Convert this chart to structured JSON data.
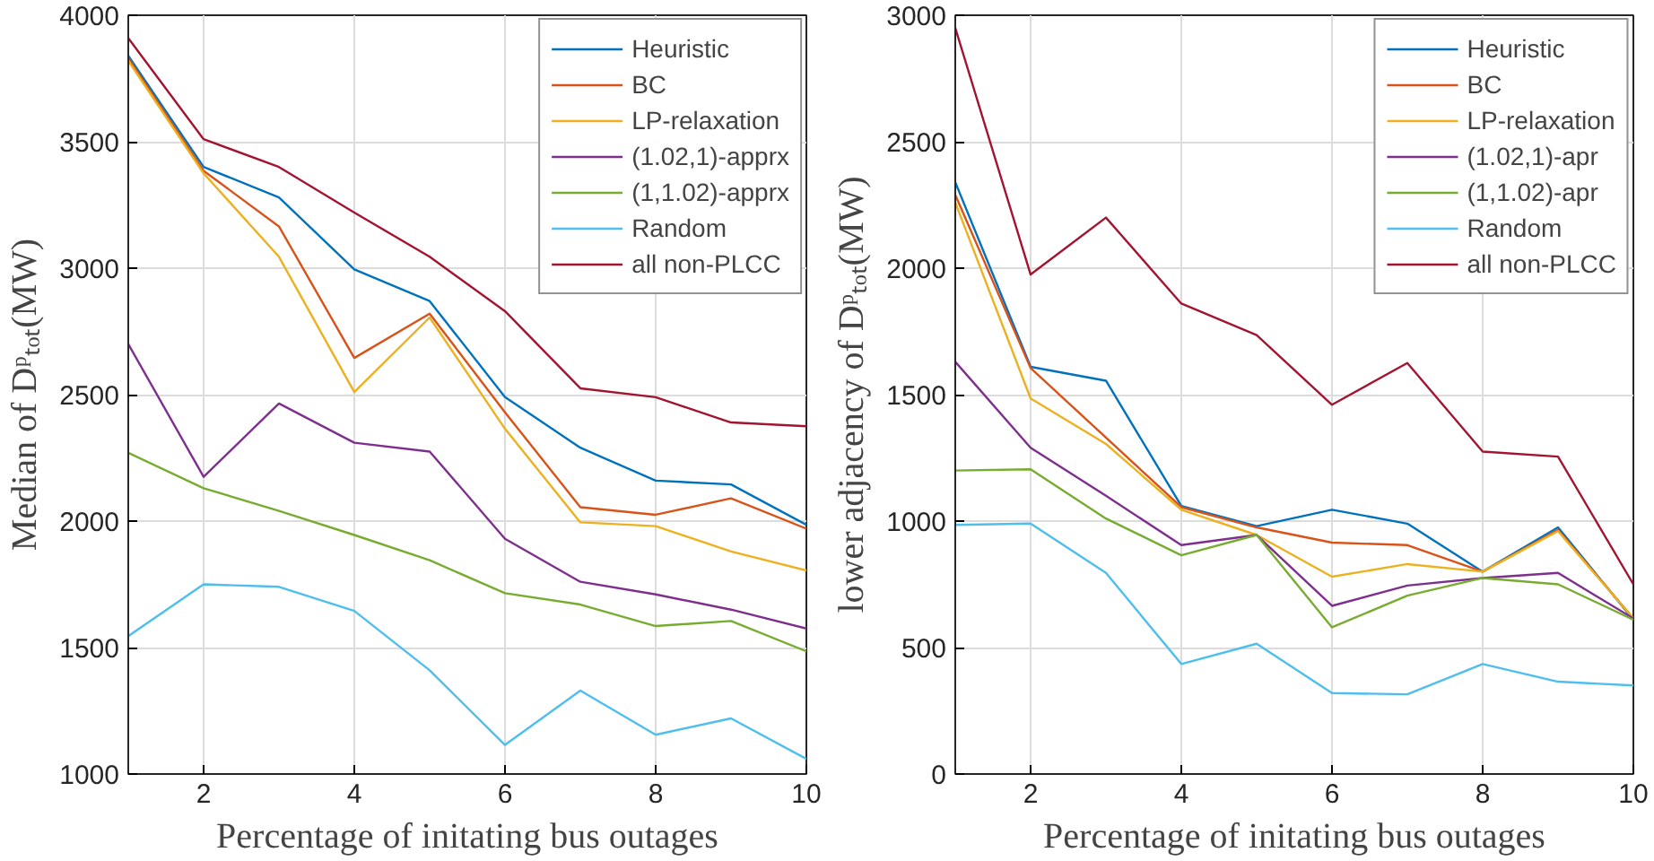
{
  "chart_data": [
    {
      "type": "line",
      "xlabel": "Percentage of initating bus outages",
      "ylabel": "Median of Dᵖₜₒₜ(MW)",
      "x": [
        1,
        2,
        3,
        4,
        5,
        6,
        7,
        8,
        9,
        10
      ],
      "xlim": [
        1,
        10
      ],
      "xticks": [
        2,
        4,
        6,
        8,
        10
      ],
      "ylim": [
        1000,
        4000
      ],
      "yticks": [
        1000,
        1500,
        2000,
        2500,
        3000,
        3500,
        4000
      ],
      "grid": true,
      "legend": "top right",
      "series": [
        {
          "name": "Heuristic",
          "color": "#0072bd",
          "values": [
            3840,
            3400,
            3280,
            2995,
            2870,
            2490,
            2290,
            2160,
            2145,
            1985
          ]
        },
        {
          "name": "BC",
          "color": "#d95319",
          "values": [
            3830,
            3385,
            3165,
            2645,
            2820,
            2430,
            2055,
            2025,
            2090,
            1970
          ]
        },
        {
          "name": "LP-relaxation",
          "color": "#edb120",
          "values": [
            3820,
            3375,
            3045,
            2510,
            2805,
            2365,
            1995,
            1980,
            1880,
            1805
          ]
        },
        {
          "name": "(1.02,1)-apprx",
          "color": "#7e2f8e",
          "values": [
            2700,
            2175,
            2465,
            2310,
            2275,
            1930,
            1760,
            1710,
            1650,
            1575
          ]
        },
        {
          "name": "(1,1.02)-apprx",
          "color": "#77ac30",
          "values": [
            2270,
            2130,
            2040,
            1945,
            1845,
            1715,
            1670,
            1585,
            1605,
            1485
          ]
        },
        {
          "name": "Random",
          "color": "#4dbeee",
          "values": [
            1545,
            1750,
            1740,
            1645,
            1410,
            1115,
            1330,
            1155,
            1220,
            1060
          ]
        },
        {
          "name": "all non-PLCC",
          "color": "#a2142f",
          "values": [
            3910,
            3510,
            3400,
            3220,
            3045,
            2830,
            2525,
            2490,
            2390,
            2375
          ]
        }
      ]
    },
    {
      "type": "line",
      "xlabel": "Percentage of initating bus outages",
      "ylabel": "lower adjacency of Dᵖₜₒₜ(MW)",
      "x": [
        1,
        2,
        3,
        4,
        5,
        6,
        7,
        8,
        9,
        10
      ],
      "xlim": [
        1,
        10
      ],
      "xticks": [
        2,
        4,
        6,
        8,
        10
      ],
      "ylim": [
        0,
        3000
      ],
      "yticks": [
        0,
        500,
        1000,
        1500,
        2000,
        2500,
        3000
      ],
      "grid": true,
      "legend": "top right",
      "series": [
        {
          "name": "Heuristic",
          "color": "#0072bd",
          "values": [
            2340,
            1610,
            1555,
            1060,
            980,
            1045,
            990,
            800,
            975,
            610
          ]
        },
        {
          "name": "BC",
          "color": "#d95319",
          "values": [
            2290,
            1605,
            1330,
            1055,
            975,
            915,
            905,
            800,
            965,
            615
          ]
        },
        {
          "name": "LP-relaxation",
          "color": "#edb120",
          "values": [
            2260,
            1485,
            1305,
            1045,
            945,
            780,
            830,
            800,
            960,
            615
          ]
        },
        {
          "name": "(1.02,1)-apr",
          "color": "#7e2f8e",
          "values": [
            1630,
            1290,
            1100,
            905,
            945,
            665,
            745,
            775,
            795,
            615
          ]
        },
        {
          "name": "(1,1.02)-apr",
          "color": "#77ac30",
          "values": [
            1200,
            1205,
            1010,
            865,
            945,
            580,
            705,
            775,
            750,
            610
          ]
        },
        {
          "name": "Random",
          "color": "#4dbeee",
          "values": [
            985,
            990,
            795,
            435,
            515,
            320,
            315,
            435,
            365,
            350
          ]
        },
        {
          "name": "all non-PLCC",
          "color": "#a2142f",
          "values": [
            2950,
            1975,
            2200,
            1860,
            1735,
            1460,
            1625,
            1275,
            1255,
            750
          ]
        }
      ]
    }
  ]
}
